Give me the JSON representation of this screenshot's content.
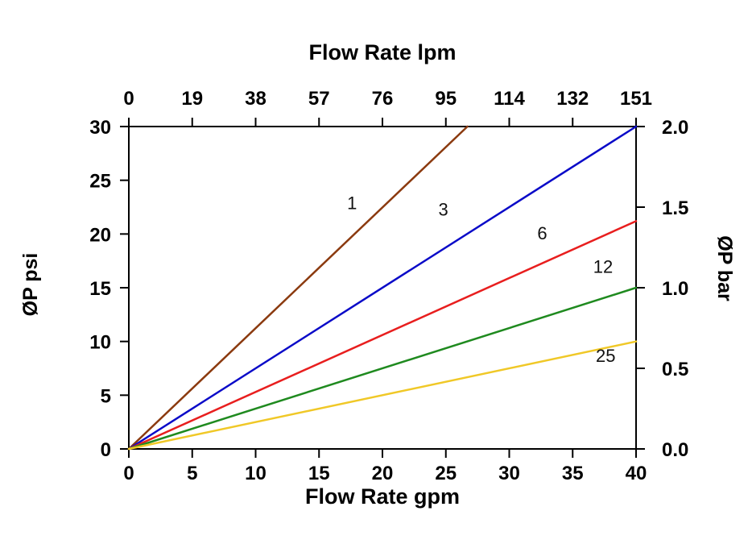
{
  "page": {
    "background": "#ffffff"
  },
  "chart_data": {
    "type": "line",
    "top_axis_title": "Flow Rate lpm",
    "bottom_axis_title": "Flow Rate gpm",
    "left_axis_title": "ØP psi",
    "right_axis_title": "ØP bar",
    "xlim": [
      0,
      40
    ],
    "ylim": [
      0,
      30
    ],
    "bottom_ticks": [
      "0",
      "5",
      "10",
      "15",
      "20",
      "25",
      "30",
      "35",
      "40"
    ],
    "top_ticks": [
      "0",
      "19",
      "38",
      "57",
      "76",
      "95",
      "114",
      "132",
      "151"
    ],
    "left_ticks": [
      "0",
      "5",
      "10",
      "15",
      "20",
      "25",
      "30"
    ],
    "right_ticks": [
      "0.0",
      "0.5",
      "1.0",
      "1.5",
      "2.0"
    ],
    "axis_color": "#000000",
    "label_color": "#111111",
    "grid": false,
    "legend": "inline-labels",
    "series": [
      {
        "name": "1",
        "color": "#8b3a0f",
        "points": [
          [
            0,
            0
          ],
          [
            26.7,
            30
          ]
        ],
        "label": {
          "x": 17.6,
          "y": 22.3
        }
      },
      {
        "name": "3",
        "color": "#0a0ac8",
        "points": [
          [
            0,
            0
          ],
          [
            40,
            30
          ]
        ],
        "label": {
          "x": 24.8,
          "y": 21.7
        }
      },
      {
        "name": "6",
        "color": "#e81e1e",
        "points": [
          [
            0,
            0
          ],
          [
            40,
            21.2
          ]
        ],
        "label": {
          "x": 32.6,
          "y": 19.5
        }
      },
      {
        "name": "12",
        "color": "#1f8a1f",
        "points": [
          [
            0,
            0
          ],
          [
            40,
            15
          ]
        ],
        "label": {
          "x": 37.4,
          "y": 16.4
        }
      },
      {
        "name": "25",
        "color": "#f0c827",
        "points": [
          [
            0,
            0
          ],
          [
            40,
            10
          ]
        ],
        "label": {
          "x": 37.6,
          "y": 8.1
        }
      }
    ]
  }
}
